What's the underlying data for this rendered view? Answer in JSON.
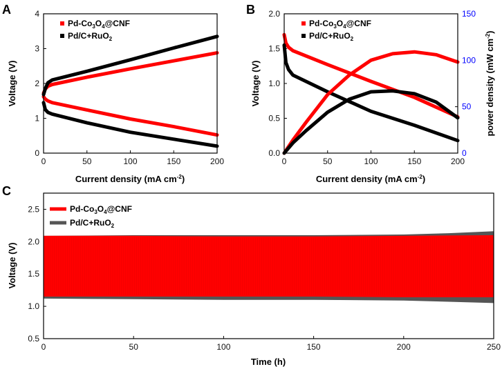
{
  "figure": {
    "panel_labels": [
      "A",
      "B",
      "C"
    ]
  },
  "colors": {
    "pd_series": "#ff0000",
    "ref_series": "#000000",
    "ref_series_c": "#555555",
    "power_axis": "#0000ff"
  },
  "legend_labels": {
    "pd": {
      "part1": "Pd-Co",
      "sub1": "3",
      "part2": "O",
      "sub2": "4",
      "part3": "@CNF"
    },
    "ref": {
      "part1": "Pd/C+RuO",
      "sub1": "2"
    }
  },
  "chart_data": [
    {
      "id": "A",
      "type": "line",
      "xlabel": "Current density (mA cm",
      "xlabel_sup": "-2",
      "xlabel_end": ")",
      "ylabel": "Voltage (V)",
      "xlim": [
        0,
        200
      ],
      "ylim": [
        0,
        4
      ],
      "xticks": [
        0,
        50,
        100,
        150,
        200
      ],
      "yticks": [
        0,
        1,
        2,
        3,
        4
      ],
      "legend_position": "top-left",
      "series": [
        {
          "name": "Pd-Co3O4@CNF charge",
          "legend": "pd",
          "x": [
            0,
            2,
            5,
            10,
            50,
            100,
            150,
            200
          ],
          "y": [
            1.72,
            1.84,
            1.92,
            1.97,
            2.18,
            2.42,
            2.65,
            2.88
          ]
        },
        {
          "name": "Pd-Co3O4@CNF discharge",
          "legend": "pd",
          "x": [
            0,
            2,
            5,
            10,
            50,
            100,
            150,
            200
          ],
          "y": [
            1.62,
            1.55,
            1.5,
            1.45,
            1.24,
            0.98,
            0.76,
            0.52
          ]
        },
        {
          "name": "Pd/C+RuO2 charge",
          "legend": "ref",
          "x": [
            0,
            2,
            5,
            10,
            50,
            100,
            150,
            200
          ],
          "y": [
            1.68,
            1.85,
            2.02,
            2.1,
            2.35,
            2.68,
            3.02,
            3.35
          ]
        },
        {
          "name": "Pd/C+RuO2 discharge",
          "legend": "ref",
          "x": [
            0,
            2,
            5,
            10,
            50,
            100,
            150,
            200
          ],
          "y": [
            1.45,
            1.25,
            1.17,
            1.12,
            0.87,
            0.6,
            0.4,
            0.2
          ]
        }
      ]
    },
    {
      "id": "B",
      "type": "line",
      "xlabel": "Current density (mA cm",
      "xlabel_sup": "-2",
      "xlabel_end": ")",
      "ylabel": "Voltage (V)",
      "y2label": "power density (mW cm",
      "y2label_sup": "-2",
      "y2label_end": ")",
      "xlim": [
        0,
        200
      ],
      "ylim": [
        0,
        2.0
      ],
      "y2lim": [
        0,
        150
      ],
      "xticks": [
        0,
        50,
        100,
        150,
        200
      ],
      "yticks": [
        0.0,
        0.5,
        1.0,
        1.5,
        2.0
      ],
      "y2ticks": [
        0,
        50,
        100,
        150
      ],
      "legend_position": "top-left",
      "series": [
        {
          "name": "Pd-Co3O4@CNF voltage",
          "legend": "pd",
          "axis": "left",
          "x": [
            0,
            2,
            5,
            10,
            50,
            100,
            150,
            200
          ],
          "y": [
            1.7,
            1.58,
            1.52,
            1.47,
            1.27,
            1.03,
            0.8,
            0.52
          ]
        },
        {
          "name": "Pd/C+RuO2 voltage",
          "legend": "ref",
          "axis": "left",
          "x": [
            0,
            2,
            5,
            10,
            50,
            100,
            150,
            200
          ],
          "y": [
            1.55,
            1.3,
            1.2,
            1.12,
            0.88,
            0.6,
            0.4,
            0.18
          ]
        },
        {
          "name": "Pd-Co3O4@CNF power density",
          "legend": "pd",
          "axis": "right",
          "x": [
            0,
            10,
            25,
            50,
            75,
            100,
            125,
            150,
            175,
            200
          ],
          "y": [
            0,
            14,
            33,
            63,
            84,
            100,
            107,
            109,
            106,
            98
          ]
        },
        {
          "name": "Pd/C+RuO2 power density",
          "legend": "ref",
          "axis": "right",
          "x": [
            0,
            10,
            25,
            50,
            75,
            100,
            125,
            150,
            175,
            200
          ],
          "y": [
            0,
            11,
            24,
            44,
            58,
            66,
            67,
            64,
            55,
            38
          ]
        }
      ]
    },
    {
      "id": "C",
      "type": "area",
      "xlabel": "Time (h)",
      "ylabel": "Voltage (V)",
      "xlim": [
        0,
        250
      ],
      "ylim": [
        0.5,
        2.75
      ],
      "xticks": [
        0,
        50,
        100,
        150,
        200,
        250
      ],
      "yticks": [
        0.5,
        1.0,
        1.5,
        2.0,
        2.5
      ],
      "legend_position": "top-left",
      "series": [
        {
          "name": "Pd/C+RuO2",
          "legend": "ref",
          "x": [
            0,
            50,
            100,
            150,
            200,
            225,
            250
          ],
          "upper": [
            2.09,
            2.1,
            2.1,
            2.1,
            2.11,
            2.13,
            2.16
          ],
          "lower": [
            1.12,
            1.11,
            1.1,
            1.1,
            1.09,
            1.07,
            1.05
          ]
        },
        {
          "name": "Pd-Co3O4@CNF",
          "legend": "pd",
          "x": [
            0,
            50,
            100,
            150,
            200,
            250
          ],
          "upper": [
            2.09,
            2.09,
            2.08,
            2.08,
            2.09,
            2.1
          ],
          "lower": [
            1.15,
            1.15,
            1.15,
            1.15,
            1.14,
            1.14
          ]
        }
      ]
    }
  ]
}
